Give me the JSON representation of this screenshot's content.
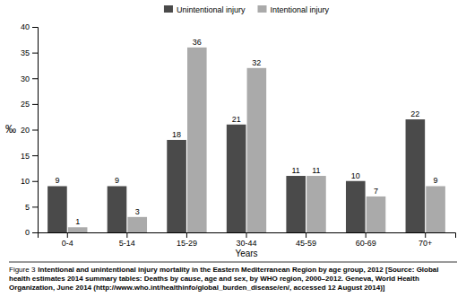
{
  "chart_data": {
    "type": "bar",
    "categories": [
      "0-4",
      "5-14",
      "15-29",
      "30-44",
      "45-59",
      "60-69",
      "70+"
    ],
    "series": [
      {
        "name": "Unintentional injury",
        "color": "#4a4a4a",
        "values": [
          9,
          9,
          18,
          21,
          11,
          10,
          22
        ]
      },
      {
        "name": "Intentional injury",
        "color": "#aaaaaa",
        "values": [
          1,
          3,
          36,
          32,
          11,
          7,
          9
        ]
      }
    ],
    "xlabel": "Years",
    "ylabel": "‰",
    "ylim": [
      0,
      40
    ],
    "yticks": [
      0,
      5,
      10,
      15,
      20,
      25,
      30,
      35,
      40
    ],
    "grid": false,
    "legend": "top",
    "data_labels": true,
    "annotations": [
      "Figure 3",
      "Intentional and unintentional injury mortality in the Eastern Mediterranean Region by age group, 2012 [Source: Global health estimates 2014 summary tables: Deaths by cause, age and sex, by WHO region, 2000–2012. Geneva, World Health Organization, June 2014 (http://www.who.int/healthinfo/global_burden_disease/en/, accessed 12 August 2014)]"
    ]
  }
}
